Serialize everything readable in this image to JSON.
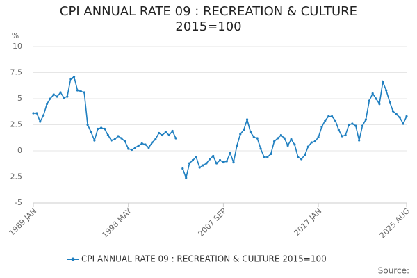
{
  "chart_data": {
    "type": "line",
    "title": "CPI ANNUAL RATE 09 : RECREATION & CULTURE 2015=100",
    "y_label": "%",
    "source": "Source:",
    "categories": [
      "1989 JAN",
      null,
      null,
      null,
      null,
      null,
      null,
      null,
      null,
      null,
      null,
      null,
      null,
      null,
      null,
      null,
      null,
      null,
      null,
      null,
      null,
      null,
      null,
      null,
      null,
      null,
      null,
      null,
      "1998 MAY",
      null,
      null,
      null,
      null,
      null,
      null,
      null,
      null,
      null,
      null,
      null,
      null,
      null,
      null,
      null,
      null,
      null,
      null,
      null,
      null,
      null,
      null,
      null,
      null,
      null,
      null,
      null,
      "2007 SEP",
      null,
      null,
      null,
      null,
      null,
      null,
      null,
      null,
      null,
      null,
      null,
      null,
      null,
      null,
      null,
      null,
      null,
      null,
      null,
      null,
      null,
      null,
      null,
      null,
      null,
      null,
      null,
      "2017 JAN",
      null,
      null,
      null,
      null,
      null,
      null,
      null,
      null,
      null,
      null,
      null,
      null,
      null,
      null,
      null,
      null,
      null,
      null,
      null,
      null,
      null,
      null,
      null,
      null,
      null,
      "2025 AUG"
    ],
    "series": [
      {
        "name": "CPI ANNUAL RATE 09 : RECREATION & CULTURE 2015=100",
        "color": "#1f7fc0",
        "values": [
          3.6,
          3.6,
          2.8,
          3.4,
          4.5,
          5.0,
          5.4,
          5.2,
          5.6,
          5.1,
          5.2,
          6.9,
          7.1,
          5.8,
          5.7,
          5.6,
          2.5,
          1.8,
          1.0,
          2.1,
          2.2,
          2.1,
          1.5,
          1.0,
          1.1,
          1.4,
          1.2,
          0.9,
          0.2,
          0.1,
          0.3,
          0.5,
          0.7,
          0.6,
          0.3,
          0.8,
          1.1,
          1.7,
          1.5,
          1.8,
          1.5,
          1.9,
          1.2,
          null,
          -1.7,
          -2.6,
          -1.2,
          -0.9,
          -0.6,
          -1.6,
          -1.4,
          -1.2,
          -0.8,
          -0.5,
          -1.2,
          -0.9,
          -1.1,
          -1.0,
          -0.2,
          -1.1,
          0.5,
          1.6,
          2.0,
          3.0,
          1.8,
          1.3,
          1.2,
          0.2,
          -0.6,
          -0.6,
          -0.3,
          0.9,
          1.2,
          1.5,
          1.2,
          0.5,
          1.1,
          0.6,
          -0.6,
          -0.8,
          -0.4,
          0.4,
          0.8,
          0.9,
          1.3,
          2.3,
          2.9,
          3.3,
          3.3,
          2.9,
          2.0,
          1.4,
          1.5,
          2.5,
          2.6,
          2.4,
          1.0,
          2.4,
          3.0,
          4.8,
          5.5,
          5.0,
          4.5,
          6.6,
          5.8,
          4.7,
          3.8,
          3.5,
          3.2,
          2.6,
          3.3
        ]
      }
    ],
    "ylim": [
      -5,
      10
    ],
    "yticks": [
      -5,
      -2.5,
      0,
      2.5,
      5,
      7.5,
      10
    ],
    "grid": true,
    "legend": "bottom"
  }
}
